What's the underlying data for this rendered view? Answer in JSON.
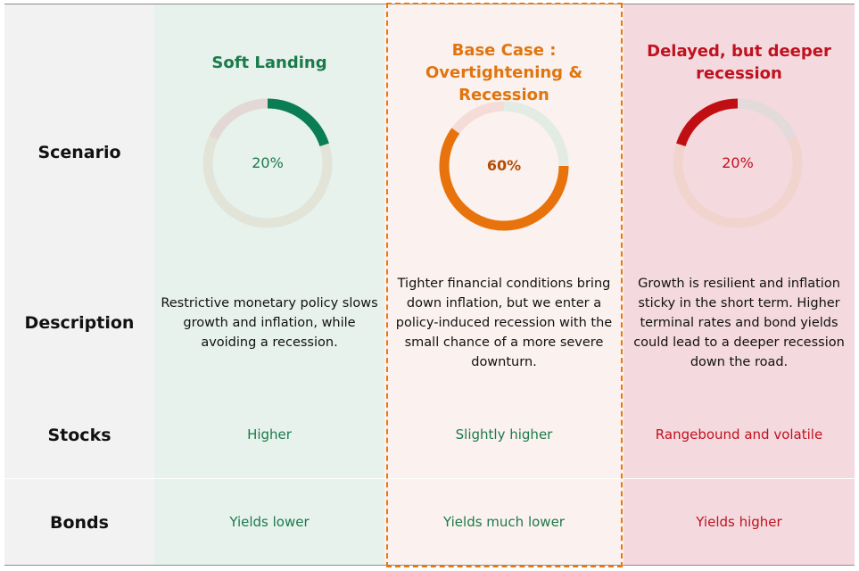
{
  "row_labels": {
    "scenario": "Scenario",
    "description": "Description",
    "stocks": "Stocks",
    "bonds": "Bonds"
  },
  "scenarios": [
    {
      "title": "Soft Landing",
      "probability": 20,
      "probability_label": "20%",
      "description": "Restrictive monetary policy slows growth and inflation, while avoiding a recession.",
      "stocks": "Higher",
      "bonds": "Yields lower",
      "accent_color": "#0a7d55",
      "track_color": "#e3e4d8",
      "track_top_color": "#e3d8d5"
    },
    {
      "title_line1": "Base Case :",
      "title_line2": "Overtightening & Recession",
      "probability": 60,
      "probability_label": "60%",
      "description": "Tighter financial conditions bring down inflation, but we enter a policy-induced recession with the small chance of a more severe downturn.",
      "stocks": "Slightly higher",
      "bonds": "Yields much lower",
      "accent_color": "#e8730c",
      "track_color": "#f5dcd8",
      "track_top_color": "#e2ece4"
    },
    {
      "title_line1": "Delayed, but deeper",
      "title_line2": "recession",
      "probability": 20,
      "probability_label": "20%",
      "description": "Growth is resilient and inflation sticky in the short term. Higher terminal rates and bond yields could lead to a deeper recession down the road.",
      "stocks": "Rangebound and volatile",
      "bonds": "Yields higher",
      "accent_color": "#c00f12",
      "track_color": "#f2d4cf",
      "track_top_color": "#e3dadb"
    }
  ],
  "colors": {
    "green_text": "#1b7a4b",
    "orange_text": "#e07510",
    "red_text": "#c0111f",
    "highlight_border": "#e8780f"
  }
}
